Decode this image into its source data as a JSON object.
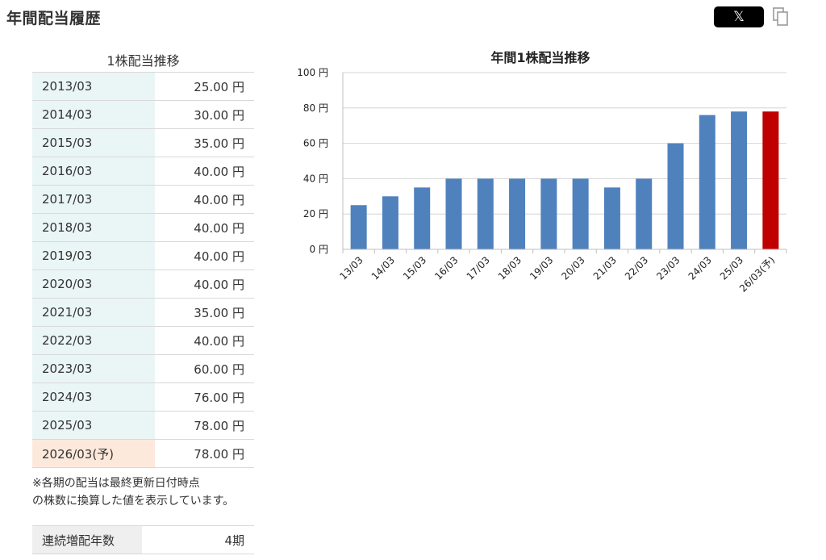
{
  "page": {
    "title": "年間配当履歴"
  },
  "share": {
    "x_label": "𝕏"
  },
  "table": {
    "caption": "1株配当推移",
    "rows": [
      {
        "year": "2013/03",
        "amount": "25.00 円"
      },
      {
        "year": "2014/03",
        "amount": "30.00 円"
      },
      {
        "year": "2015/03",
        "amount": "35.00 円"
      },
      {
        "year": "2016/03",
        "amount": "40.00 円"
      },
      {
        "year": "2017/03",
        "amount": "40.00 円"
      },
      {
        "year": "2018/03",
        "amount": "40.00 円"
      },
      {
        "year": "2019/03",
        "amount": "40.00 円"
      },
      {
        "year": "2020/03",
        "amount": "40.00 円"
      },
      {
        "year": "2021/03",
        "amount": "35.00 円"
      },
      {
        "year": "2022/03",
        "amount": "40.00 円"
      },
      {
        "year": "2023/03",
        "amount": "60.00 円"
      },
      {
        "year": "2024/03",
        "amount": "76.00 円"
      },
      {
        "year": "2025/03",
        "amount": "78.00 円"
      },
      {
        "year": "2026/03(予)",
        "amount": "78.00 円",
        "forecast": true
      }
    ]
  },
  "note": {
    "line1": "※各期の配当は最終更新日付時点",
    "line2": "の株数に換算した値を表示しています。"
  },
  "streak": {
    "label": "連続増配年数",
    "value": "4期"
  },
  "colors": {
    "bar": "#4f81bd",
    "forecast_bar": "#c00000",
    "year_cell": "#eaf5f6",
    "forecast_cell": "#fde9dc"
  },
  "chart_data": {
    "type": "bar",
    "title": "年間1株配当推移",
    "categories": [
      "13/03",
      "14/03",
      "15/03",
      "16/03",
      "17/03",
      "18/03",
      "19/03",
      "20/03",
      "21/03",
      "22/03",
      "23/03",
      "24/03",
      "25/03",
      "26/03(予)"
    ],
    "values": [
      25,
      30,
      35,
      40,
      40,
      40,
      40,
      40,
      35,
      40,
      60,
      76,
      78,
      78
    ],
    "forecast_index": 13,
    "ylim": [
      0,
      100
    ],
    "yticks": [
      0,
      20,
      40,
      60,
      80,
      100
    ],
    "ytick_labels": [
      "0 円",
      "20 円",
      "40 円",
      "60 円",
      "80 円",
      "100 円"
    ],
    "grid": true,
    "legend": "none"
  }
}
